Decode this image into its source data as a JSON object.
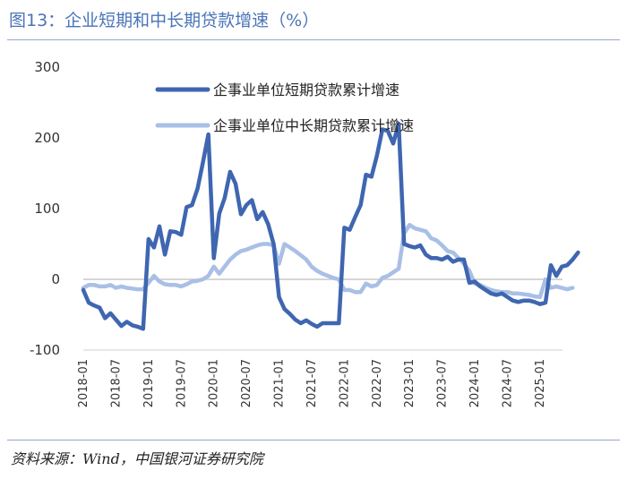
{
  "header": {
    "title": "图13：企业短期和中长期贷款增速（%）"
  },
  "footer": {
    "source": "资料来源：Wind，中国银河证券研究院"
  },
  "colors": {
    "short_term": "#3f66b0",
    "long_term": "#a9bfe6",
    "title": "#4a74b8",
    "zero_line": "#c8c8c8"
  },
  "chart_data": {
    "type": "line",
    "title": "企业短期和中长期贷款增速（%）",
    "xlabel": "",
    "ylabel": "",
    "ylim": [
      -100,
      300
    ],
    "yticks": [
      -100,
      0,
      100,
      200,
      300
    ],
    "ytick_labels": [
      "-100",
      "0",
      "100",
      "200",
      "300"
    ],
    "xticks": [
      "2018-01",
      "2018-07",
      "2019-01",
      "2019-07",
      "2020-01",
      "2020-07",
      "2021-01",
      "2021-07",
      "2022-01",
      "2022-07",
      "2023-01",
      "2023-07",
      "2024-01",
      "2024-07",
      "2025-01"
    ],
    "x_start": "2018-01",
    "legend": {
      "position": "top-center"
    },
    "series": [
      {
        "name": "企事业单位短期贷款累计增速",
        "values": [
          -15,
          -33,
          -37,
          -40,
          -55,
          -48,
          -57,
          -66,
          -60,
          -65,
          -67,
          -70,
          57,
          45,
          75,
          35,
          68,
          67,
          63,
          102,
          105,
          128,
          165,
          205,
          30,
          93,
          115,
          152,
          135,
          92,
          105,
          112,
          85,
          95,
          78,
          50,
          -25,
          -42,
          -49,
          -57,
          -62,
          -58,
          -63,
          -67,
          -62,
          -62,
          -62,
          -62,
          73,
          70,
          88,
          105,
          148,
          145,
          175,
          212,
          210,
          192,
          220,
          50,
          47,
          45,
          48,
          35,
          30,
          30,
          28,
          32,
          25,
          28,
          28,
          -5,
          -3,
          -10,
          -15,
          -20,
          -22,
          -20,
          -25,
          -30,
          -32,
          -30,
          -30,
          -32,
          -35,
          -33,
          20,
          5,
          18,
          20,
          28,
          38
        ]
      },
      {
        "name": "企事业单位中长期贷款累计增速",
        "values": [
          -12,
          -8,
          -8,
          -10,
          -10,
          -8,
          -12,
          -10,
          -12,
          -13,
          -14,
          -14,
          -5,
          5,
          -3,
          -7,
          -8,
          -8,
          -10,
          -7,
          -3,
          -2,
          0,
          5,
          18,
          8,
          18,
          28,
          35,
          40,
          42,
          45,
          48,
          50,
          50,
          48,
          22,
          50,
          45,
          40,
          34,
          28,
          18,
          12,
          8,
          5,
          2,
          0,
          -15,
          -15,
          -18,
          -18,
          -6,
          -10,
          -8,
          2,
          5,
          10,
          15,
          65,
          77,
          72,
          70,
          68,
          58,
          55,
          48,
          40,
          38,
          30,
          22,
          12,
          -6,
          -8,
          -12,
          -15,
          -17,
          -18,
          -18,
          -20,
          -20,
          -21,
          -22,
          -24,
          -25,
          0,
          -12,
          -10,
          -12,
          -14,
          -12
        ]
      }
    ]
  }
}
